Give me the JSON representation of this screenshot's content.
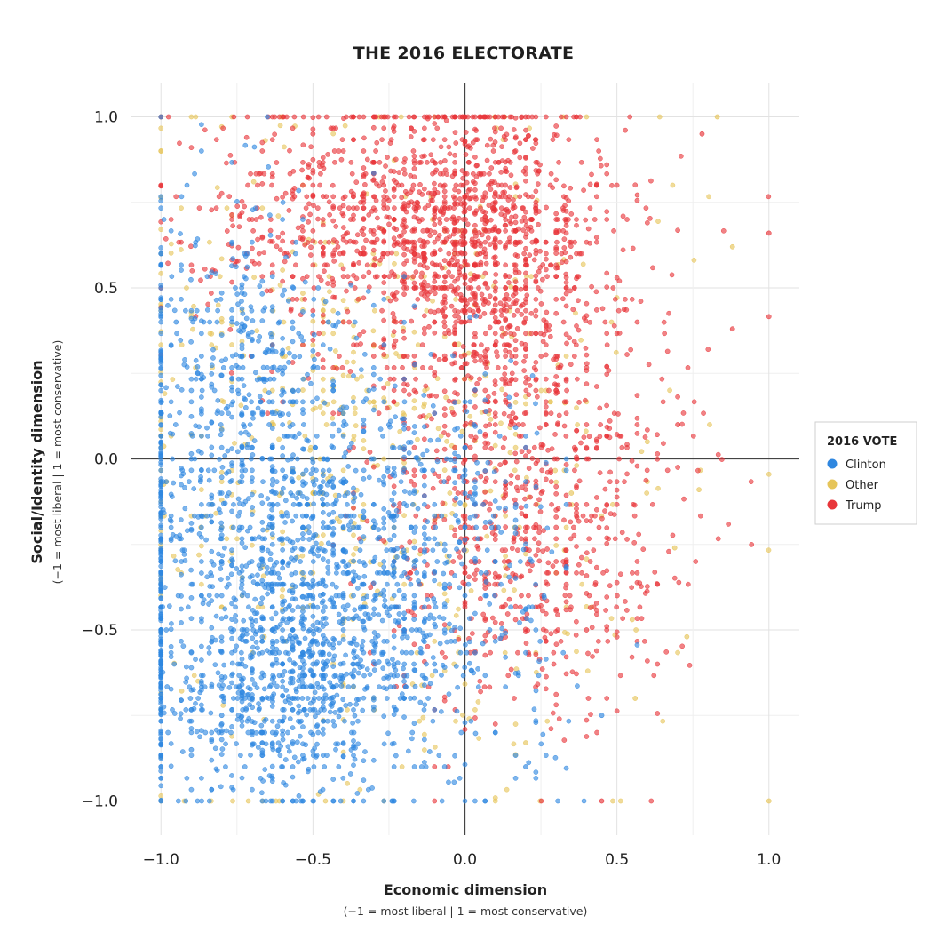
{
  "chart_data": {
    "type": "scatter",
    "title": "THE 2016 ELECTORATE",
    "xlabel": "Economic dimension",
    "xlabel_sub": "(−1 = most liberal | 1 = most conservative)",
    "ylabel": "Social/Identity dimension",
    "ylabel_sub": "(−1 = most liberal | 1 = most conservative)",
    "xlim": [
      -1.1,
      1.1
    ],
    "ylim": [
      -1.1,
      1.1
    ],
    "xticks": [
      -1.0,
      -0.5,
      0.0,
      0.5,
      1.0
    ],
    "xtick_labels": [
      "−1.0",
      "−0.5",
      "0.0",
      "0.5",
      "1.0"
    ],
    "yticks": [
      1.0,
      0.5,
      0.0,
      -0.5,
      -1.0
    ],
    "ytick_labels": [
      "1.0",
      "0.5",
      "0.0",
      "−0.5",
      "−1.0"
    ],
    "grid": true,
    "zero_lines": true,
    "legend": {
      "title": "2016 VOTE",
      "position": "right"
    },
    "series": [
      {
        "name": "Clinton",
        "color": "#2f87e0",
        "clusters": [
          {
            "cx": -0.62,
            "cy": -0.68,
            "sx": 0.2,
            "sy": 0.18
          },
          {
            "cx": -0.55,
            "cy": -0.35,
            "sx": 0.25,
            "sy": 0.25
          },
          {
            "cx": -0.7,
            "cy": 0.15,
            "sx": 0.2,
            "sy": 0.3
          },
          {
            "cx": -0.2,
            "cy": -0.35,
            "sx": 0.25,
            "sy": 0.3
          }
        ],
        "sample_points": [
          [
            -1.0,
            -1.0
          ],
          [
            -1.0,
            -0.8
          ],
          [
            -0.9,
            -0.85
          ],
          [
            -0.8,
            -0.75
          ],
          [
            -0.7,
            -0.7
          ],
          [
            -0.6,
            -0.65
          ],
          [
            -0.55,
            -0.7
          ],
          [
            -0.5,
            -0.6
          ],
          [
            -0.4,
            -0.4
          ],
          [
            -0.3,
            -0.2
          ],
          [
            -0.2,
            -0.5
          ],
          [
            -0.1,
            -0.6
          ],
          [
            0.0,
            -0.4
          ],
          [
            0.2,
            -0.9
          ],
          [
            0.45,
            -0.75
          ],
          [
            -0.9,
            0.0
          ],
          [
            -0.95,
            0.4
          ],
          [
            -0.6,
            0.2
          ],
          [
            -0.45,
            0.4
          ],
          [
            -0.25,
            0.1
          ]
        ]
      },
      {
        "name": "Other",
        "color": "#e6c55a",
        "clusters": [
          {
            "cx": -0.3,
            "cy": 0.05,
            "sx": 0.45,
            "sy": 0.5
          }
        ],
        "sample_points": [
          [
            0.83,
            1.0
          ],
          [
            0.88,
            0.62
          ],
          [
            1.0,
            -1.0
          ],
          [
            0.77,
            -0.09
          ],
          [
            0.69,
            -0.26
          ],
          [
            0.73,
            -0.52
          ],
          [
            0.56,
            -0.7
          ],
          [
            0.55,
            -0.47
          ],
          [
            0.2,
            -0.83
          ],
          [
            -0.25,
            0.15
          ],
          [
            -0.6,
            0.3
          ],
          [
            -0.8,
            0.4
          ],
          [
            0.1,
            -0.2
          ],
          [
            0.35,
            -0.1
          ],
          [
            0.6,
            0.05
          ]
        ]
      },
      {
        "name": "Trump",
        "color": "#e8363a",
        "clusters": [
          {
            "cx": 0.05,
            "cy": 0.65,
            "sx": 0.18,
            "sy": 0.2
          },
          {
            "cx": 0.15,
            "cy": 0.35,
            "sx": 0.25,
            "sy": 0.3
          },
          {
            "cx": -0.35,
            "cy": 0.7,
            "sx": 0.28,
            "sy": 0.2
          },
          {
            "cx": 0.2,
            "cy": -0.25,
            "sx": 0.25,
            "sy": 0.25
          }
        ],
        "sample_points": [
          [
            1.0,
            0.66
          ],
          [
            0.88,
            0.38
          ],
          [
            0.78,
            0.95
          ],
          [
            0.45,
            -1.0
          ],
          [
            0.0,
            1.0
          ],
          [
            0.2,
            1.0
          ],
          [
            -0.5,
            0.95
          ],
          [
            -0.76,
            1.0
          ],
          [
            -1.0,
            0.8
          ],
          [
            0.05,
            0.6
          ],
          [
            0.1,
            0.45
          ],
          [
            0.3,
            0.3
          ],
          [
            -0.2,
            0.7
          ],
          [
            0.4,
            -0.5
          ],
          [
            0.7,
            0.1
          ]
        ]
      }
    ]
  }
}
